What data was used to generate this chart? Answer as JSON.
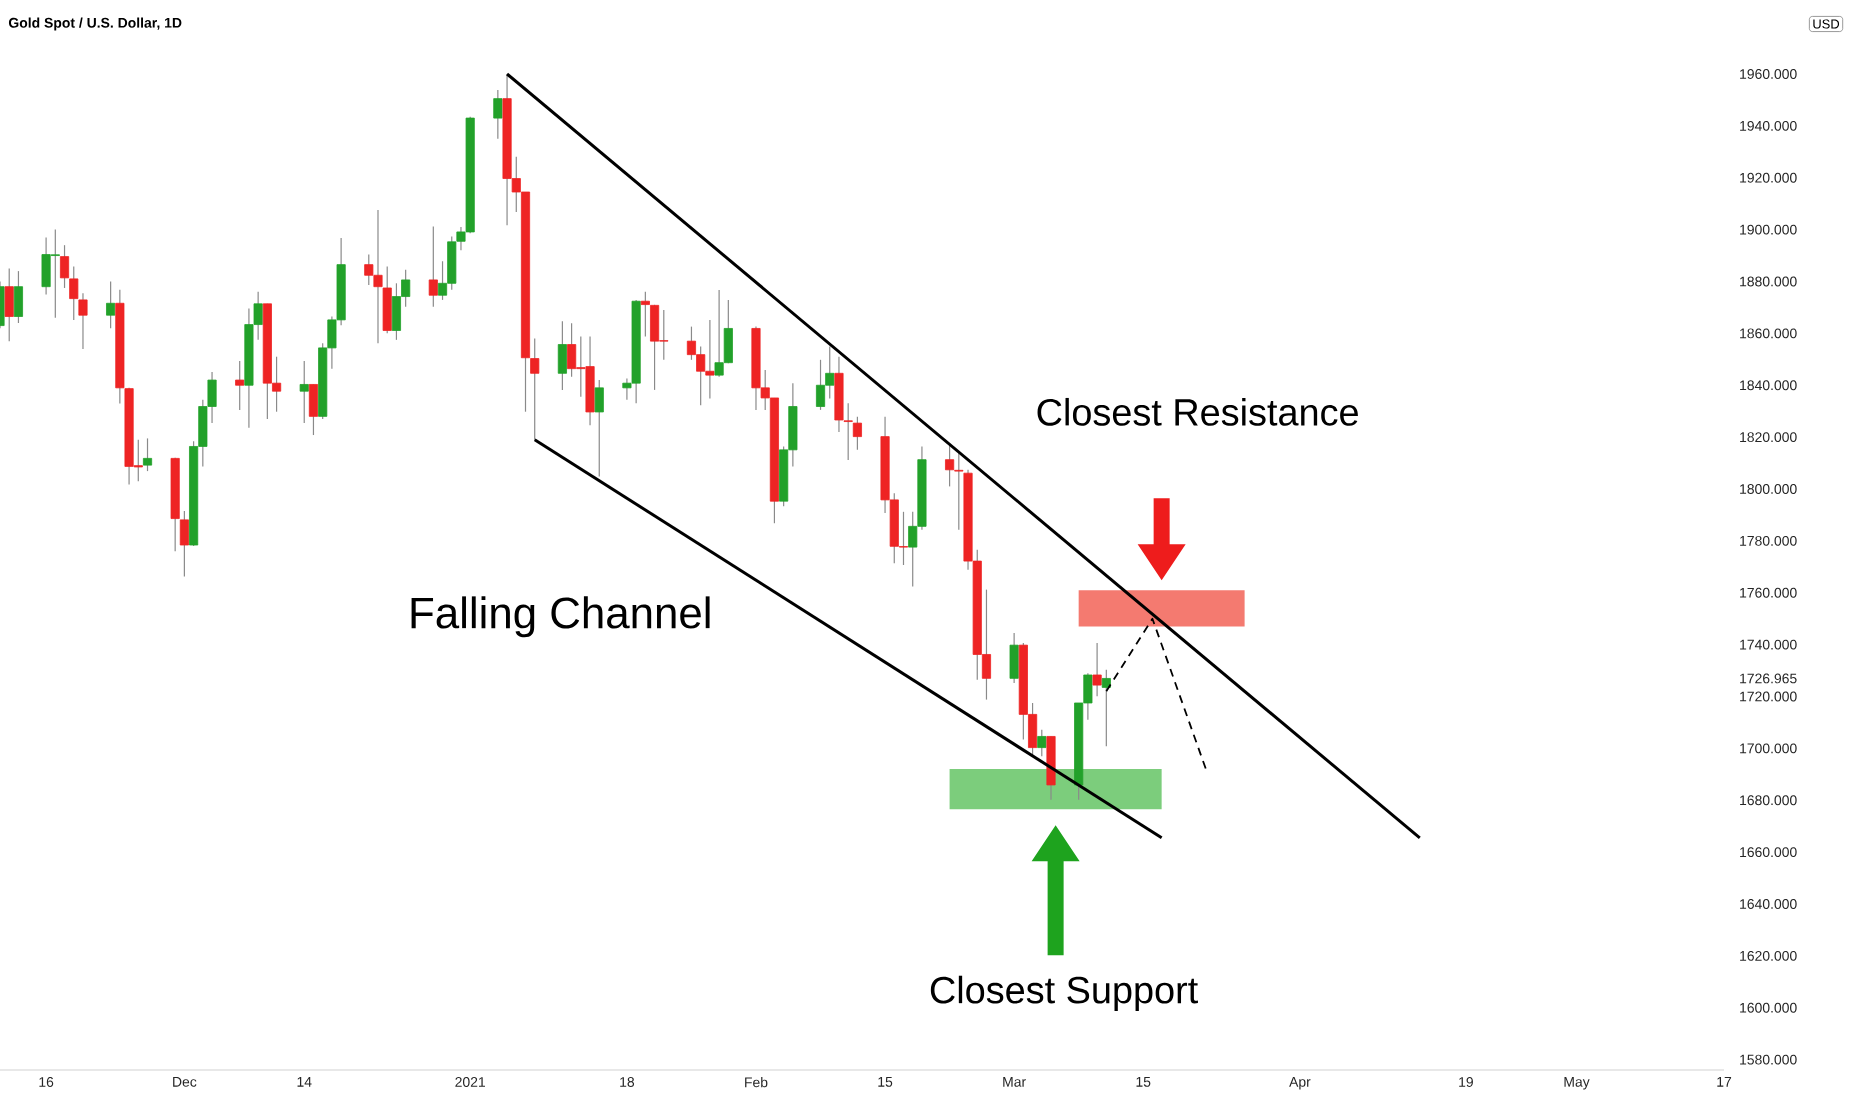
{
  "chart_data": {
    "type": "candlestick",
    "title": "Gold Spot / U.S. Dollar, 1D",
    "annotations": [
      "Falling Channel",
      "Closest Resistance",
      "Closest Support",
      "USD"
    ],
    "xlim": [
      "2020-11-11",
      "2021-05-17"
    ],
    "ylim": [
      1576,
      1960
    ],
    "xticks": [
      {
        "value": "2020-11-16",
        "label": "16"
      },
      {
        "value": "2020-12-01",
        "label": "Dec"
      },
      {
        "value": "2020-12-14",
        "label": "14"
      },
      {
        "value": "2021-01-01",
        "label": "2021"
      },
      {
        "value": "2021-01-18",
        "label": "18"
      },
      {
        "value": "2021-02-01",
        "label": "Feb"
      },
      {
        "value": "2021-02-15",
        "label": "15"
      },
      {
        "value": "2021-03-01",
        "label": "Mar"
      },
      {
        "value": "2021-03-15",
        "label": "15"
      },
      {
        "value": "2021-04-01",
        "label": "Apr"
      },
      {
        "value": "2021-04-19",
        "label": "19"
      },
      {
        "value": "2021-05-01",
        "label": "May"
      },
      {
        "value": "2021-05-17",
        "label": "17"
      }
    ],
    "yticks": [
      {
        "value": 1580,
        "label": "1580.000"
      },
      {
        "value": 1600,
        "label": "1600.000"
      },
      {
        "value": 1620,
        "label": "1620.000"
      },
      {
        "value": 1640,
        "label": "1640.000"
      },
      {
        "value": 1660,
        "label": "1660.000"
      },
      {
        "value": 1680,
        "label": "1680.000"
      },
      {
        "value": 1700,
        "label": "1700.000"
      },
      {
        "value": 1720,
        "label": "1720.000"
      },
      {
        "value": 1726.965,
        "label": "1726.965"
      },
      {
        "value": 1740,
        "label": "1740.000"
      },
      {
        "value": 1760,
        "label": "1760.000"
      },
      {
        "value": 1780,
        "label": "1780.000"
      },
      {
        "value": 1800,
        "label": "1800.000"
      },
      {
        "value": 1820,
        "label": "1820.000"
      },
      {
        "value": 1840,
        "label": "1840.000"
      },
      {
        "value": 1860,
        "label": "1860.000"
      },
      {
        "value": 1880,
        "label": "1880.000"
      },
      {
        "value": 1900,
        "label": "1900.000"
      },
      {
        "value": 1920,
        "label": "1920.000"
      },
      {
        "value": 1940,
        "label": "1940.000"
      },
      {
        "value": 1960,
        "label": "1960.000"
      }
    ],
    "x": [
      "2020-11-11",
      "2020-11-12",
      "2020-11-13",
      "2020-11-16",
      "2020-11-17",
      "2020-11-18",
      "2020-11-19",
      "2020-11-20",
      "2020-11-23",
      "2020-11-24",
      "2020-11-25",
      "2020-11-26",
      "2020-11-27",
      "2020-11-30",
      "2020-12-01",
      "2020-12-02",
      "2020-12-03",
      "2020-12-04",
      "2020-12-07",
      "2020-12-08",
      "2020-12-09",
      "2020-12-10",
      "2020-12-11",
      "2020-12-14",
      "2020-12-15",
      "2020-12-16",
      "2020-12-17",
      "2020-12-18",
      "2020-12-21",
      "2020-12-22",
      "2020-12-23",
      "2020-12-24",
      "2020-12-25",
      "2020-12-28",
      "2020-12-29",
      "2020-12-30",
      "2020-12-31",
      "2021-01-01",
      "2021-01-04",
      "2021-01-05",
      "2021-01-06",
      "2021-01-07",
      "2021-01-08",
      "2021-01-11",
      "2021-01-12",
      "2021-01-13",
      "2021-01-14",
      "2021-01-15",
      "2021-01-18",
      "2021-01-19",
      "2021-01-20",
      "2021-01-21",
      "2021-01-22",
      "2021-01-25",
      "2021-01-26",
      "2021-01-27",
      "2021-01-28",
      "2021-01-29",
      "2021-02-01",
      "2021-02-02",
      "2021-02-03",
      "2021-02-04",
      "2021-02-05",
      "2021-02-08",
      "2021-02-09",
      "2021-02-10",
      "2021-02-11",
      "2021-02-12",
      "2021-02-15",
      "2021-02-16",
      "2021-02-17",
      "2021-02-18",
      "2021-02-19",
      "2021-02-22",
      "2021-02-23",
      "2021-02-24",
      "2021-02-25",
      "2021-02-26",
      "2021-03-01",
      "2021-03-02",
      "2021-03-03",
      "2021-03-04",
      "2021-03-05",
      "2021-03-08",
      "2021-03-09",
      "2021-03-10",
      "2021-03-11"
    ],
    "ohlc": [
      [
        1863,
        1880,
        1862,
        1878
      ],
      [
        1878,
        1885,
        1857,
        1866.5
      ],
      [
        1866.5,
        1884,
        1864,
        1878
      ],
      [
        1878,
        1897,
        1875,
        1890.4
      ],
      [
        1890,
        1900,
        1866,
        1890.3
      ],
      [
        1889.6,
        1894,
        1877.5,
        1881.4
      ],
      [
        1881,
        1885.8,
        1865.2,
        1873.4
      ],
      [
        1872.9,
        1875.5,
        1854,
        1867
      ],
      [
        1867,
        1880,
        1862,
        1871.6
      ],
      [
        1871.6,
        1876.8,
        1833,
        1839
      ],
      [
        1838.7,
        1839,
        1801.7,
        1808.7
      ],
      [
        1809,
        1819,
        1803,
        1808.5
      ],
      [
        1809.2,
        1819.5,
        1806.9,
        1811.8
      ],
      [
        1811.8,
        1812,
        1776,
        1788.6
      ],
      [
        1788.1,
        1791.5,
        1766.3,
        1778.4
      ],
      [
        1778.4,
        1818.4,
        1778,
        1816.4
      ],
      [
        1816.4,
        1834.4,
        1808.7,
        1831.8
      ],
      [
        1831.8,
        1845.1,
        1825.4,
        1842
      ],
      [
        1842,
        1849.3,
        1830.5,
        1840
      ],
      [
        1840,
        1869.6,
        1823.6,
        1863.4
      ],
      [
        1863.4,
        1876,
        1857.5,
        1871.4
      ],
      [
        1871.4,
        1871.4,
        1827,
        1840.8
      ],
      [
        1840.8,
        1851,
        1829.8,
        1837.7
      ],
      [
        1837.7,
        1849.3,
        1825.4,
        1840.3
      ],
      [
        1840.3,
        1840.3,
        1820.8,
        1828
      ],
      [
        1828,
        1856.2,
        1827,
        1854.4
      ],
      [
        1854.4,
        1866.5,
        1846.4,
        1865.2
      ],
      [
        1865.2,
        1896.8,
        1863.1,
        1886.5
      ],
      [
        1886.5,
        1890.4,
        1878.6,
        1882.4
      ],
      [
        1882.4,
        1907.6,
        1856.2,
        1878
      ],
      [
        1877.5,
        1885.8,
        1860,
        1861.1
      ],
      [
        1861.1,
        1879.3,
        1857.5,
        1874.2
      ],
      [
        1874.2,
        1884.5,
        1870.3,
        1880.6
      ],
      [
        1880.6,
        1901.2,
        1870.3,
        1874.7
      ],
      [
        1874.7,
        1887.8,
        1872.9,
        1879.3
      ],
      [
        1879.3,
        1897.3,
        1876.8,
        1895.3
      ],
      [
        1895.5,
        1901,
        1892,
        1899.1
      ],
      [
        1899.1,
        1943.5,
        1898.6,
        1943
      ],
      [
        1943,
        1953.8,
        1935,
        1950.5
      ],
      [
        1950.5,
        1960,
        1901.7,
        1919.7
      ],
      [
        1919.7,
        1928.1,
        1906.8,
        1914.5
      ],
      [
        1914.5,
        1914.5,
        1829.8,
        1850.6
      ],
      [
        1850.3,
        1858,
        1819,
        1844.6
      ],
      [
        1844.6,
        1864.7,
        1838.2,
        1855.7
      ],
      [
        1855.7,
        1863.9,
        1843.3,
        1846.4
      ],
      [
        1846.8,
        1858.8,
        1835.6,
        1846.4
      ],
      [
        1847.2,
        1858.8,
        1824.6,
        1829.7
      ],
      [
        1829.7,
        1842,
        1804.8,
        1839
      ],
      [
        1839,
        1842.6,
        1834.4,
        1840.8
      ],
      [
        1840.8,
        1872.9,
        1833.1,
        1872.4
      ],
      [
        1872.4,
        1876,
        1858.8,
        1871.1
      ],
      [
        1870.8,
        1871,
        1838.2,
        1857
      ],
      [
        1857.2,
        1869,
        1849.8,
        1857
      ],
      [
        1857,
        1862.6,
        1849.8,
        1851.8
      ],
      [
        1851.8,
        1854.9,
        1832.3,
        1845.4
      ],
      [
        1845.4,
        1865.2,
        1834.9,
        1843.9
      ],
      [
        1843.9,
        1876.7,
        1843.3,
        1848.7
      ],
      [
        1848.7,
        1872.9,
        1848.5,
        1861.9
      ],
      [
        1861.9,
        1862.6,
        1830.5,
        1839
      ],
      [
        1839,
        1845.9,
        1830.5,
        1835.1
      ],
      [
        1835.1,
        1835.1,
        1786.8,
        1795.3
      ],
      [
        1795.3,
        1816.4,
        1793.3,
        1815.1
      ],
      [
        1815.1,
        1840.8,
        1808.7,
        1831.8
      ],
      [
        1831.8,
        1849.8,
        1830.5,
        1840
      ],
      [
        1840,
        1854.9,
        1834.9,
        1844.6
      ],
      [
        1844.6,
        1851,
        1822,
        1826.6
      ],
      [
        1826.3,
        1833.1,
        1811.2,
        1826
      ],
      [
        1825.4,
        1827.9,
        1815.1,
        1820.2
      ],
      [
        1820.2,
        1827.9,
        1790.7,
        1795.8
      ],
      [
        1795.8,
        1798.4,
        1771.4,
        1777.9
      ],
      [
        1777.8,
        1791.2,
        1770.7,
        1777.6
      ],
      [
        1777.6,
        1791.2,
        1762.4,
        1785.6
      ],
      [
        1785.6,
        1816.4,
        1784.3,
        1811.3
      ],
      [
        1811.3,
        1817.7,
        1801,
        1807.4
      ],
      [
        1807.2,
        1813.8,
        1784.3,
        1806.9
      ],
      [
        1806.1,
        1807.4,
        1768.9,
        1772.2
      ],
      [
        1772.2,
        1776.6,
        1726.5,
        1736.2
      ],
      [
        1736.2,
        1761.2,
        1718.8,
        1727
      ],
      [
        1727,
        1744.5,
        1725.2,
        1739.8
      ],
      [
        1739.8,
        1740.6,
        1703.4,
        1713.1
      ],
      [
        1713.1,
        1717.5,
        1697,
        1700.3
      ],
      [
        1700.3,
        1707.2,
        1697,
        1704.6
      ],
      [
        1704.6,
        1704.6,
        1680.2,
        1685.9
      ],
      [
        1685.9,
        1717.5,
        1680.2,
        1717.5
      ],
      [
        1717.5,
        1729,
        1711,
        1728.3
      ],
      [
        1728.3,
        1740.6,
        1720.1,
        1724.4
      ],
      [
        1723.5,
        1730.3,
        1700.8,
        1726.965
      ]
    ],
    "series": [
      {
        "type": "line",
        "x": [
          "2021-01-05",
          "2021-04-14"
        ],
        "values": [
          1960,
          1665.5
        ],
        "color": "#000000",
        "line_style": "solid"
      },
      {
        "type": "line",
        "x": [
          "2021-01-08",
          "2021-03-17"
        ],
        "values": [
          1819,
          1665.5
        ],
        "color": "#000000",
        "line_style": "solid"
      },
      {
        "type": "line",
        "x": [
          "2021-03-11",
          "2021-03-16",
          "2021-03-22"
        ],
        "values": [
          1722,
          1750,
          1690
        ],
        "color": "#000000",
        "line_style": "dashed"
      },
      {
        "type": "area",
        "x": [
          "2021-03-08",
          "2021-03-26"
        ],
        "values": [
          null,
          null
        ],
        "lower": [
          1747,
          1747
        ],
        "upper": [
          1761,
          1761
        ],
        "color": "#f47a70"
      },
      {
        "type": "area",
        "x": [
          "2021-02-22",
          "2021-03-17"
        ],
        "values": [
          null,
          null
        ],
        "lower": [
          1676.5,
          1676.5
        ],
        "upper": [
          1692,
          1692
        ],
        "color": "#7ccd7c"
      }
    ]
  }
}
